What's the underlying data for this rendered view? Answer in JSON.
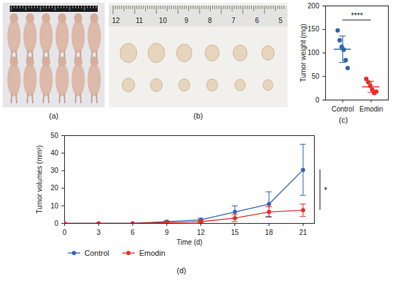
{
  "chart_data": [
    {
      "type": "scatter",
      "panel": "(c)",
      "ylabel": "Tumor weight (mg)",
      "categories": [
        "Control",
        "Emodin"
      ],
      "colors": [
        "#2f64b4",
        "#e2302c"
      ],
      "values": [
        [
          148,
          127,
          113,
          107,
          85,
          68
        ],
        [
          45,
          38,
          30,
          22,
          15,
          18
        ]
      ],
      "means": [
        108,
        28
      ],
      "sd": [
        28,
        12
      ],
      "ylim": [
        0,
        200
      ],
      "yticks": [
        0,
        50,
        100,
        150,
        200
      ],
      "annotations": [
        "****"
      ]
    },
    {
      "type": "line",
      "panel": "(d)",
      "xlabel": "Time (d)",
      "ylabel": "Tumor volumes (mm³)",
      "x": [
        0,
        3,
        6,
        9,
        12,
        15,
        18,
        21
      ],
      "series": [
        {
          "name": "Control",
          "color": "#2f64b4",
          "marker": "circle",
          "values": [
            0,
            0,
            0,
            1,
            2,
            6.5,
            11,
            30.5
          ],
          "errors": [
            0,
            0,
            0,
            0.5,
            1,
            3.5,
            7,
            14.5
          ]
        },
        {
          "name": "Emodin",
          "color": "#e2302c",
          "marker": "circle",
          "values": [
            0,
            0,
            0,
            0.5,
            1,
            3,
            6.5,
            7.5
          ],
          "errors": [
            0,
            0,
            0,
            0.3,
            0.7,
            2,
            3,
            3.5
          ]
        }
      ],
      "xlim": [
        0,
        22
      ],
      "xticks": [
        0,
        3,
        6,
        9,
        12,
        15,
        18,
        21
      ],
      "ylim": [
        0,
        50
      ],
      "yticks": [
        0,
        10,
        20,
        30,
        40,
        50
      ],
      "legend": "bottom",
      "annotations": [
        "*"
      ]
    }
  ],
  "images": [
    {
      "panel": "(a)"
    },
    {
      "panel": "(b)",
      "ruler_labels": [
        12,
        11,
        10,
        9,
        8,
        7,
        6,
        5
      ]
    }
  ]
}
